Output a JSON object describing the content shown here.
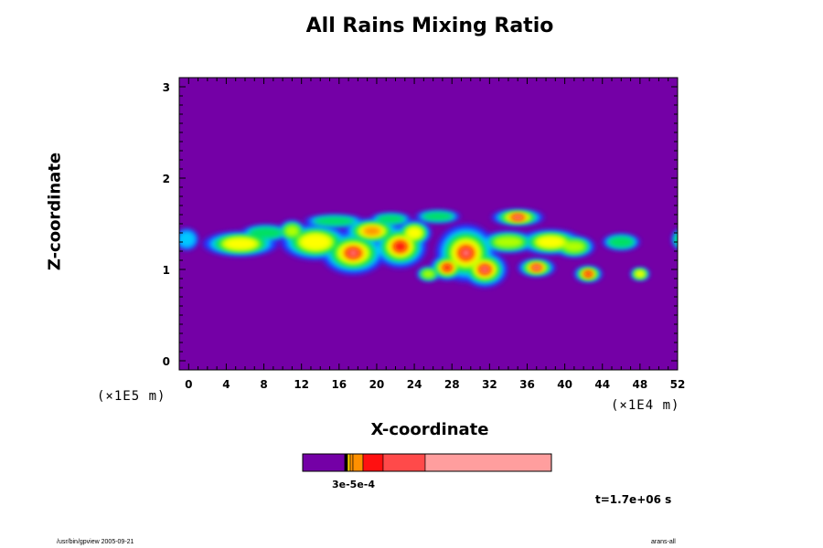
{
  "chart_data": {
    "type": "heatmap",
    "title": "All Rains Mixing Ratio",
    "xlabel": "X-coordinate",
    "ylabel": "Z-coordinate",
    "x_unit": "(×1E4 m)",
    "y_unit": "(×1E5 m)",
    "xlim": [
      -1,
      52
    ],
    "ylim": [
      -0.1,
      3.1
    ],
    "x_ticks": [
      "0",
      "4",
      "8",
      "12",
      "16",
      "20",
      "24",
      "28",
      "32",
      "36",
      "40",
      "44",
      "48",
      "52"
    ],
    "y_ticks": [
      "0",
      "1",
      "2",
      "3"
    ],
    "background_color": "#7400a6",
    "colorbar": {
      "colors": [
        "#7400a6",
        "#ffd000",
        "#ff9000",
        "#ff1010",
        "#ff4a4a",
        "#ff9e9e"
      ],
      "label": "3e-5e-4"
    },
    "rain_regions_z_range": [
      0.85,
      1.7
    ],
    "rain_regions_x_range": [
      -0.5,
      52.5
    ]
  },
  "annotations": {
    "time": "t=1.7e+06 s",
    "footer_left": "/usr/bin/gpview 2005-09-21",
    "footer_right": "arans-all"
  }
}
